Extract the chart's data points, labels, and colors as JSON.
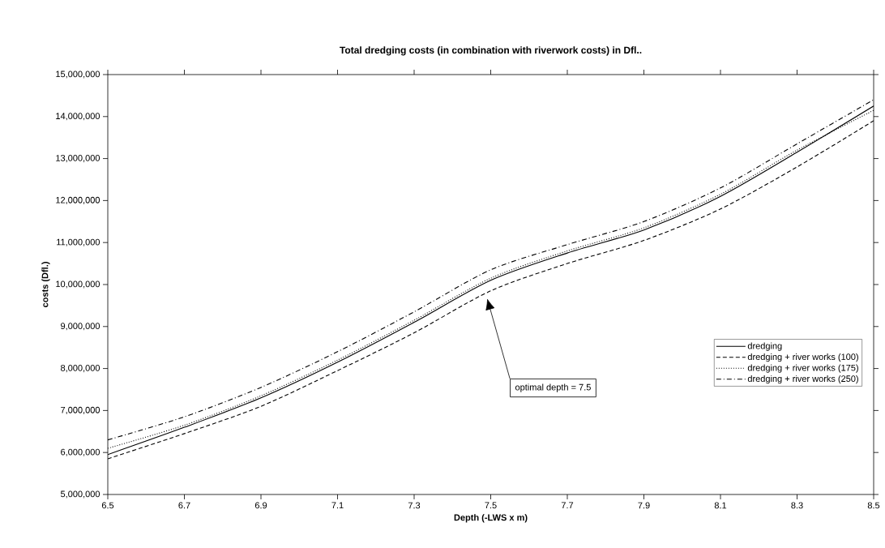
{
  "chart_data": {
    "type": "line",
    "title": "Total dredging costs (in combination with riverwork costs) in Dfl..",
    "xlabel": "Depth (-LWS x m)",
    "ylabel": "costs (Dfl.)",
    "x": [
      6.5,
      6.7,
      6.9,
      7.1,
      7.3,
      7.5,
      7.7,
      7.9,
      8.1,
      8.3,
      8.5
    ],
    "series": [
      {
        "name": "dredging",
        "color": "#000000",
        "line_style": "solid",
        "values": [
          5950000,
          6600000,
          7300000,
          8150000,
          9100000,
          10100000,
          10750000,
          11300000,
          12100000,
          13150000,
          14250000
        ]
      },
      {
        "name": "dredging + river works (100)",
        "color": "#000000",
        "line_style": "dashed",
        "values": [
          5850000,
          6450000,
          7100000,
          7950000,
          8850000,
          9850000,
          10500000,
          11050000,
          11800000,
          12800000,
          13900000
        ]
      },
      {
        "name": "dredging + river works (175)",
        "color": "#000000",
        "line_style": "dotted",
        "values": [
          6100000,
          6650000,
          7350000,
          8200000,
          9150000,
          10150000,
          10800000,
          11350000,
          12150000,
          13200000,
          14150000
        ]
      },
      {
        "name": "dredging + river works (250)",
        "color": "#000000",
        "line_style": "dashdot",
        "values": [
          6300000,
          6850000,
          7550000,
          8400000,
          9350000,
          10350000,
          10950000,
          11500000,
          12300000,
          13350000,
          14400000
        ]
      }
    ],
    "xlim": [
      6.5,
      8.5
    ],
    "xticks": [
      6.5,
      6.7,
      6.9,
      7.1,
      7.3,
      7.5,
      7.7,
      7.9,
      8.1,
      8.3,
      8.5
    ],
    "ylim": [
      5000000,
      15000000
    ],
    "yticks": [
      {
        "value": 5000000,
        "label": "5,000,000"
      },
      {
        "value": 6000000,
        "label": "6,000,000"
      },
      {
        "value": 7000000,
        "label": "7,000,000"
      },
      {
        "value": 8000000,
        "label": "8,000,000"
      },
      {
        "value": 9000000,
        "label": "9,000,000"
      },
      {
        "value": 10000000,
        "label": "10,000,000"
      },
      {
        "value": 11000000,
        "label": "11,000,000"
      },
      {
        "value": 12000000,
        "label": "12,000,000"
      },
      {
        "value": 13000000,
        "label": "13,000,000"
      },
      {
        "value": 14000000,
        "label": "14,000,000"
      },
      {
        "value": 15000000,
        "label": "15,000,000"
      }
    ],
    "annotations": [
      "optimal depth = 7.5"
    ],
    "legend": "bottom right",
    "grid": false
  }
}
